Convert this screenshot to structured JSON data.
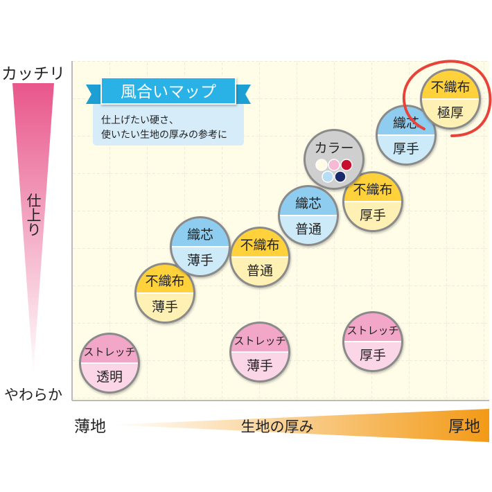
{
  "y_axis": {
    "top_label": "カッチリ",
    "middle_label": "仕上り",
    "bottom_label": "やわらか"
  },
  "x_axis": {
    "left_label": "薄地",
    "middle_label": "生地の厚み",
    "right_label": "厚地"
  },
  "banner": {
    "title": "風合いマップ",
    "line1": "仕上げたい硬さ、",
    "line2": "使いたい生地の厚みの参考に"
  },
  "colors": {
    "stretch": "#f2a6c8",
    "shin": "#8fcdf0",
    "fushokufu": "#ffd23c",
    "stretch_light": "#fbd6e6",
    "shin_light": "#cdeaf8",
    "fushokufu_light": "#fff0b3",
    "highlight_ring": "#e8433a",
    "thickness_bar": "#f39a16",
    "softness_bar": "#e8568a"
  },
  "items": [
    {
      "name": "stretch-thin-transparent",
      "top": "ストレッチ",
      "bottom": "透明",
      "kind": "stretch"
    },
    {
      "name": "stretch-thin",
      "top": "ストレッチ",
      "bottom": "薄手",
      "kind": "stretch"
    },
    {
      "name": "stretch-thick",
      "top": "ストレッチ",
      "bottom": "厚手",
      "kind": "stretch"
    },
    {
      "name": "fushokufu-thin",
      "top": "不織布",
      "bottom": "薄手",
      "kind": "fushokufu"
    },
    {
      "name": "shin-thin",
      "top": "織芯",
      "bottom": "薄手",
      "kind": "shin"
    },
    {
      "name": "fushokufu-normal",
      "top": "不織布",
      "bottom": "普通",
      "kind": "fushokufu"
    },
    {
      "name": "shin-normal",
      "top": "織芯",
      "bottom": "普通",
      "kind": "shin"
    },
    {
      "name": "fushokufu-thick",
      "top": "不織布",
      "bottom": "厚手",
      "kind": "fushokufu"
    },
    {
      "name": "shin-thick",
      "top": "織芯",
      "bottom": "厚手",
      "kind": "shin"
    },
    {
      "name": "fushokufu-extra-thick",
      "top": "不織布",
      "bottom": "極厚",
      "kind": "fushokufu",
      "highlighted": true
    }
  ],
  "color_badge": {
    "label": "カラー",
    "swatches": [
      "#fffbe6",
      "#f7b9d3",
      "#c8102e",
      "#b7dcf5",
      "#1a2a6c"
    ]
  }
}
